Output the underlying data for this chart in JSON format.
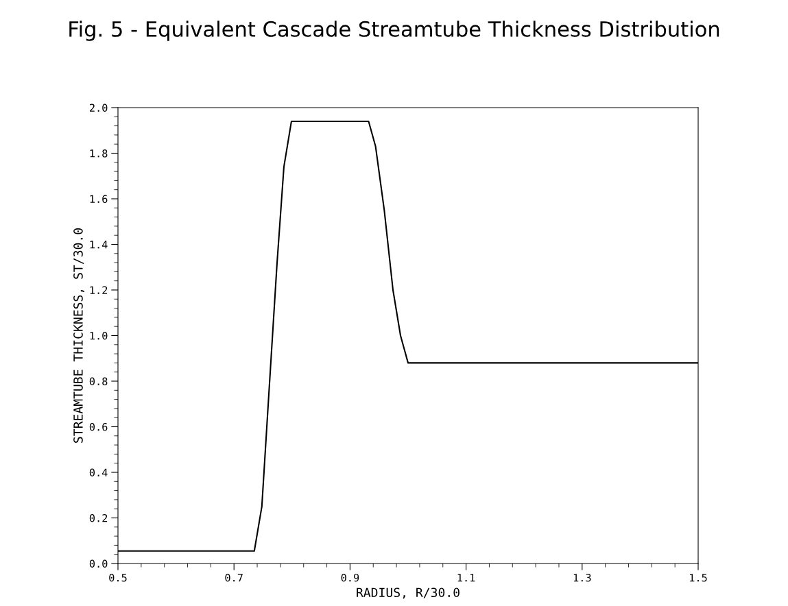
{
  "chart_data": {
    "type": "line",
    "title": "Fig. 5 - Equivalent Cascade Streamtube Thickness Distribution",
    "xlabel": "RADIUS, R/30.0",
    "ylabel": "STREAMTUBE THICKNESS, ST/30.0",
    "series": [
      {
        "color": "#000000",
        "x": [
          0.5,
          0.735,
          0.748,
          0.759,
          0.774,
          0.786,
          0.799,
          0.932,
          0.944,
          0.959,
          0.974,
          0.987,
          1.0,
          1.5
        ],
        "values": [
          0.055,
          0.055,
          0.25,
          0.7,
          1.31,
          1.74,
          1.94,
          1.94,
          1.83,
          1.55,
          1.2,
          1.0,
          0.88,
          0.88
        ]
      }
    ],
    "xlim": [
      0.5,
      1.5
    ],
    "xticks": [
      0.5,
      0.7,
      0.9,
      1.1,
      1.3,
      1.5
    ],
    "ylim": [
      0,
      2.0
    ],
    "yticks": [
      {
        "value": 0,
        "label": "0.0"
      },
      0.2,
      0.4,
      0.6,
      0.8,
      {
        "value": 1.0,
        "label": "1.0"
      },
      1.2,
      1.4,
      1.6,
      1.8,
      {
        "value": 2.0,
        "label": "2.0"
      }
    ],
    "grid": false,
    "marker": "none",
    "line_style": "solid"
  }
}
